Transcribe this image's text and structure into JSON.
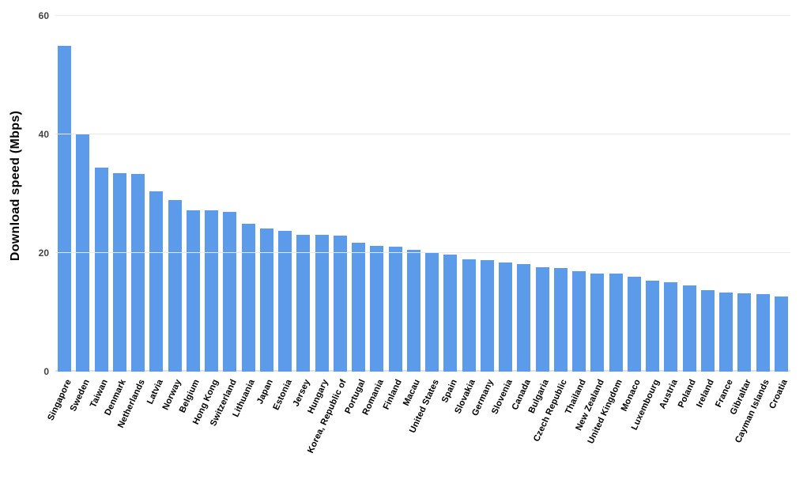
{
  "chart": {
    "type": "bar",
    "y_label": "Download speed (Mbps)",
    "y_label_fontsize": 16,
    "y_label_fontweight": 900,
    "ylim": [
      0,
      60
    ],
    "ytick_step": 20,
    "y_ticks": [
      0,
      20,
      40,
      60
    ],
    "tick_fontsize": 12,
    "tick_fontweight": 700,
    "x_label_fontsize": 11.2,
    "x_label_fontweight": 800,
    "x_label_rotation_deg": -65,
    "bar_color": "#5b9bea",
    "background_color": "#ffffff",
    "grid_color": "#e9e9e9",
    "baseline_color": "#e0e0e0",
    "bar_width_ratio": 0.74,
    "categories": [
      "Singapore",
      "Sweden",
      "Taiwan",
      "Denmark",
      "Netherlands",
      "Latvia",
      "Norway",
      "Belgium",
      "Hong Kong",
      "Switzerland",
      "Lithuania",
      "Japan",
      "Estonia",
      "Jersey",
      "Hungary",
      "Korea, Republic of",
      "Portugal",
      "Romania",
      "Finland",
      "Macau",
      "United States",
      "Spain",
      "Slovakia",
      "Germany",
      "Slovenia",
      "Canada",
      "Bulgaria",
      "Czech Republic",
      "Thailand",
      "New Zealand",
      "United Kingdom",
      "Monaco",
      "Luxembourg",
      "Austria",
      "Poland",
      "Ireland",
      "France",
      "Gibraltar",
      "Cayman Islands",
      "Croatia"
    ],
    "values": [
      55.0,
      40.2,
      34.4,
      33.5,
      33.4,
      30.4,
      29.0,
      27.2,
      27.2,
      27.0,
      25.0,
      24.2,
      23.8,
      23.1,
      23.1,
      23.0,
      21.8,
      21.2,
      21.1,
      20.6,
      20.0,
      19.8,
      19.0,
      18.8,
      18.4,
      18.1,
      17.6,
      17.5,
      17.0,
      16.6,
      16.5,
      16.0,
      15.4,
      15.1,
      14.6,
      13.8,
      13.3,
      13.2,
      13.1,
      12.7
    ]
  }
}
